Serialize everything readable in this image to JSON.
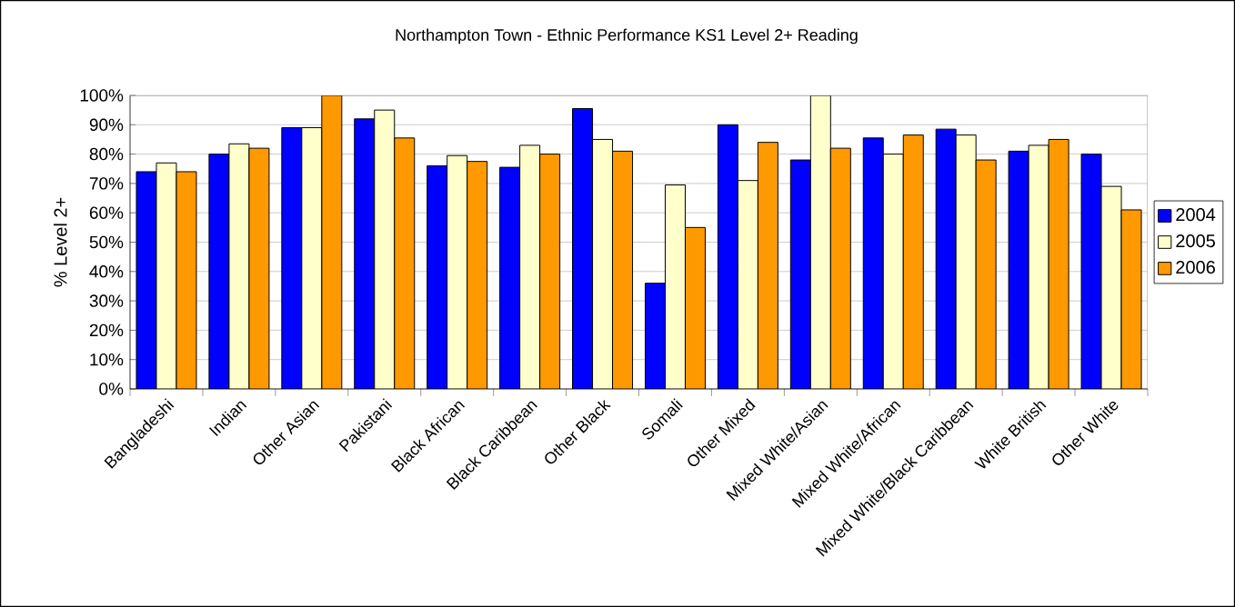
{
  "chart_data": {
    "type": "bar",
    "title": "Northampton Town - Ethnic Performance KS1 Level 2+ Reading",
    "ylabel": "% Level 2+",
    "categories": [
      "Bangladeshi",
      "Indian",
      "Other Asian",
      "Pakistani",
      "Black African",
      "Black Caribbean",
      "Other Black",
      "Somali",
      "Other Mixed",
      "Mixed White/Asian",
      "Mixed White/African",
      "Mixed White/Black Caribbean",
      "White British",
      "Other White"
    ],
    "series": [
      {
        "name": "2004",
        "color": "#0000ff",
        "values": [
          74,
          80,
          89,
          92,
          76,
          75.5,
          95.5,
          36,
          90,
          78,
          85.5,
          88.5,
          81,
          80
        ]
      },
      {
        "name": "2005",
        "color": "#ffffcc",
        "values": [
          77,
          83.5,
          89,
          95,
          79.5,
          83,
          85,
          69.5,
          71,
          100,
          80,
          86.5,
          83,
          69
        ]
      },
      {
        "name": "2006",
        "color": "#ff9900",
        "values": [
          74,
          82,
          100,
          85.5,
          77.5,
          80,
          81,
          55,
          84,
          82,
          86.5,
          78,
          85,
          61
        ]
      }
    ],
    "ylim": [
      0,
      100
    ],
    "yticks": [
      {
        "value": 0,
        "label": "0%"
      },
      {
        "value": 10,
        "label": "10%"
      },
      {
        "value": 20,
        "label": "20%"
      },
      {
        "value": 30,
        "label": "30%"
      },
      {
        "value": 40,
        "label": "40%"
      },
      {
        "value": 50,
        "label": "50%"
      },
      {
        "value": 60,
        "label": "60%"
      },
      {
        "value": 70,
        "label": "70%"
      },
      {
        "value": 80,
        "label": "80%"
      },
      {
        "value": 90,
        "label": "90%"
      },
      {
        "value": 100,
        "label": "100%"
      }
    ],
    "grid": "y",
    "legend": "right"
  }
}
